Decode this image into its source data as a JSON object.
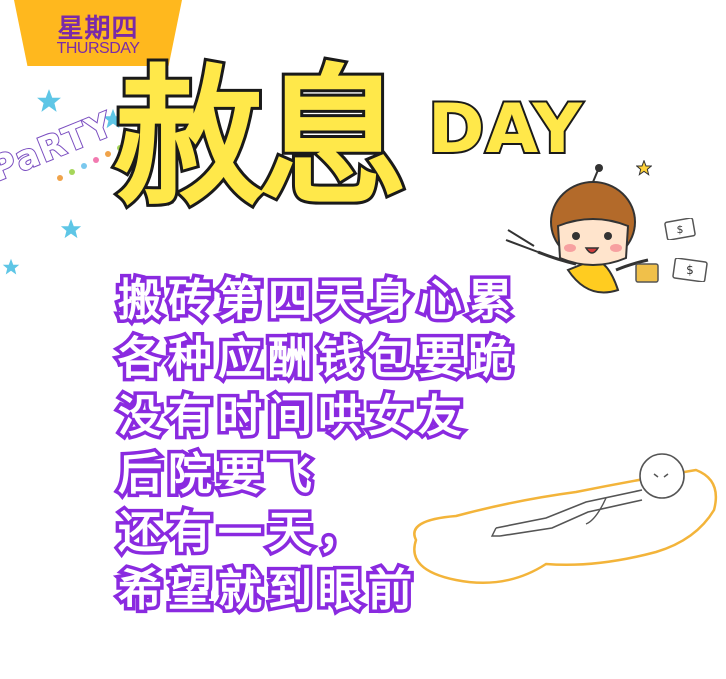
{
  "badge": {
    "weekday_cn": "星期四",
    "weekday_en": "THURSDAY",
    "color": "#ffb81e"
  },
  "headline": {
    "main": "赦息",
    "suffix": "DAY",
    "fill_color": "#ffe84a"
  },
  "party_text": "PaRTY",
  "poem": {
    "lines": [
      "搬砖第四天身心累",
      "各种应酬钱包要跪",
      "没有时间哄女友",
      "后院要飞",
      "还有一天，",
      "希望就到眼前"
    ],
    "stroke_color": "#8a2ae0"
  },
  "illustrations": {
    "girl": "cheering-girl-illustration",
    "money": "flying-money-icon",
    "stars": "star-icon",
    "collapsed_figure": "exhausted-figure-illustration"
  }
}
